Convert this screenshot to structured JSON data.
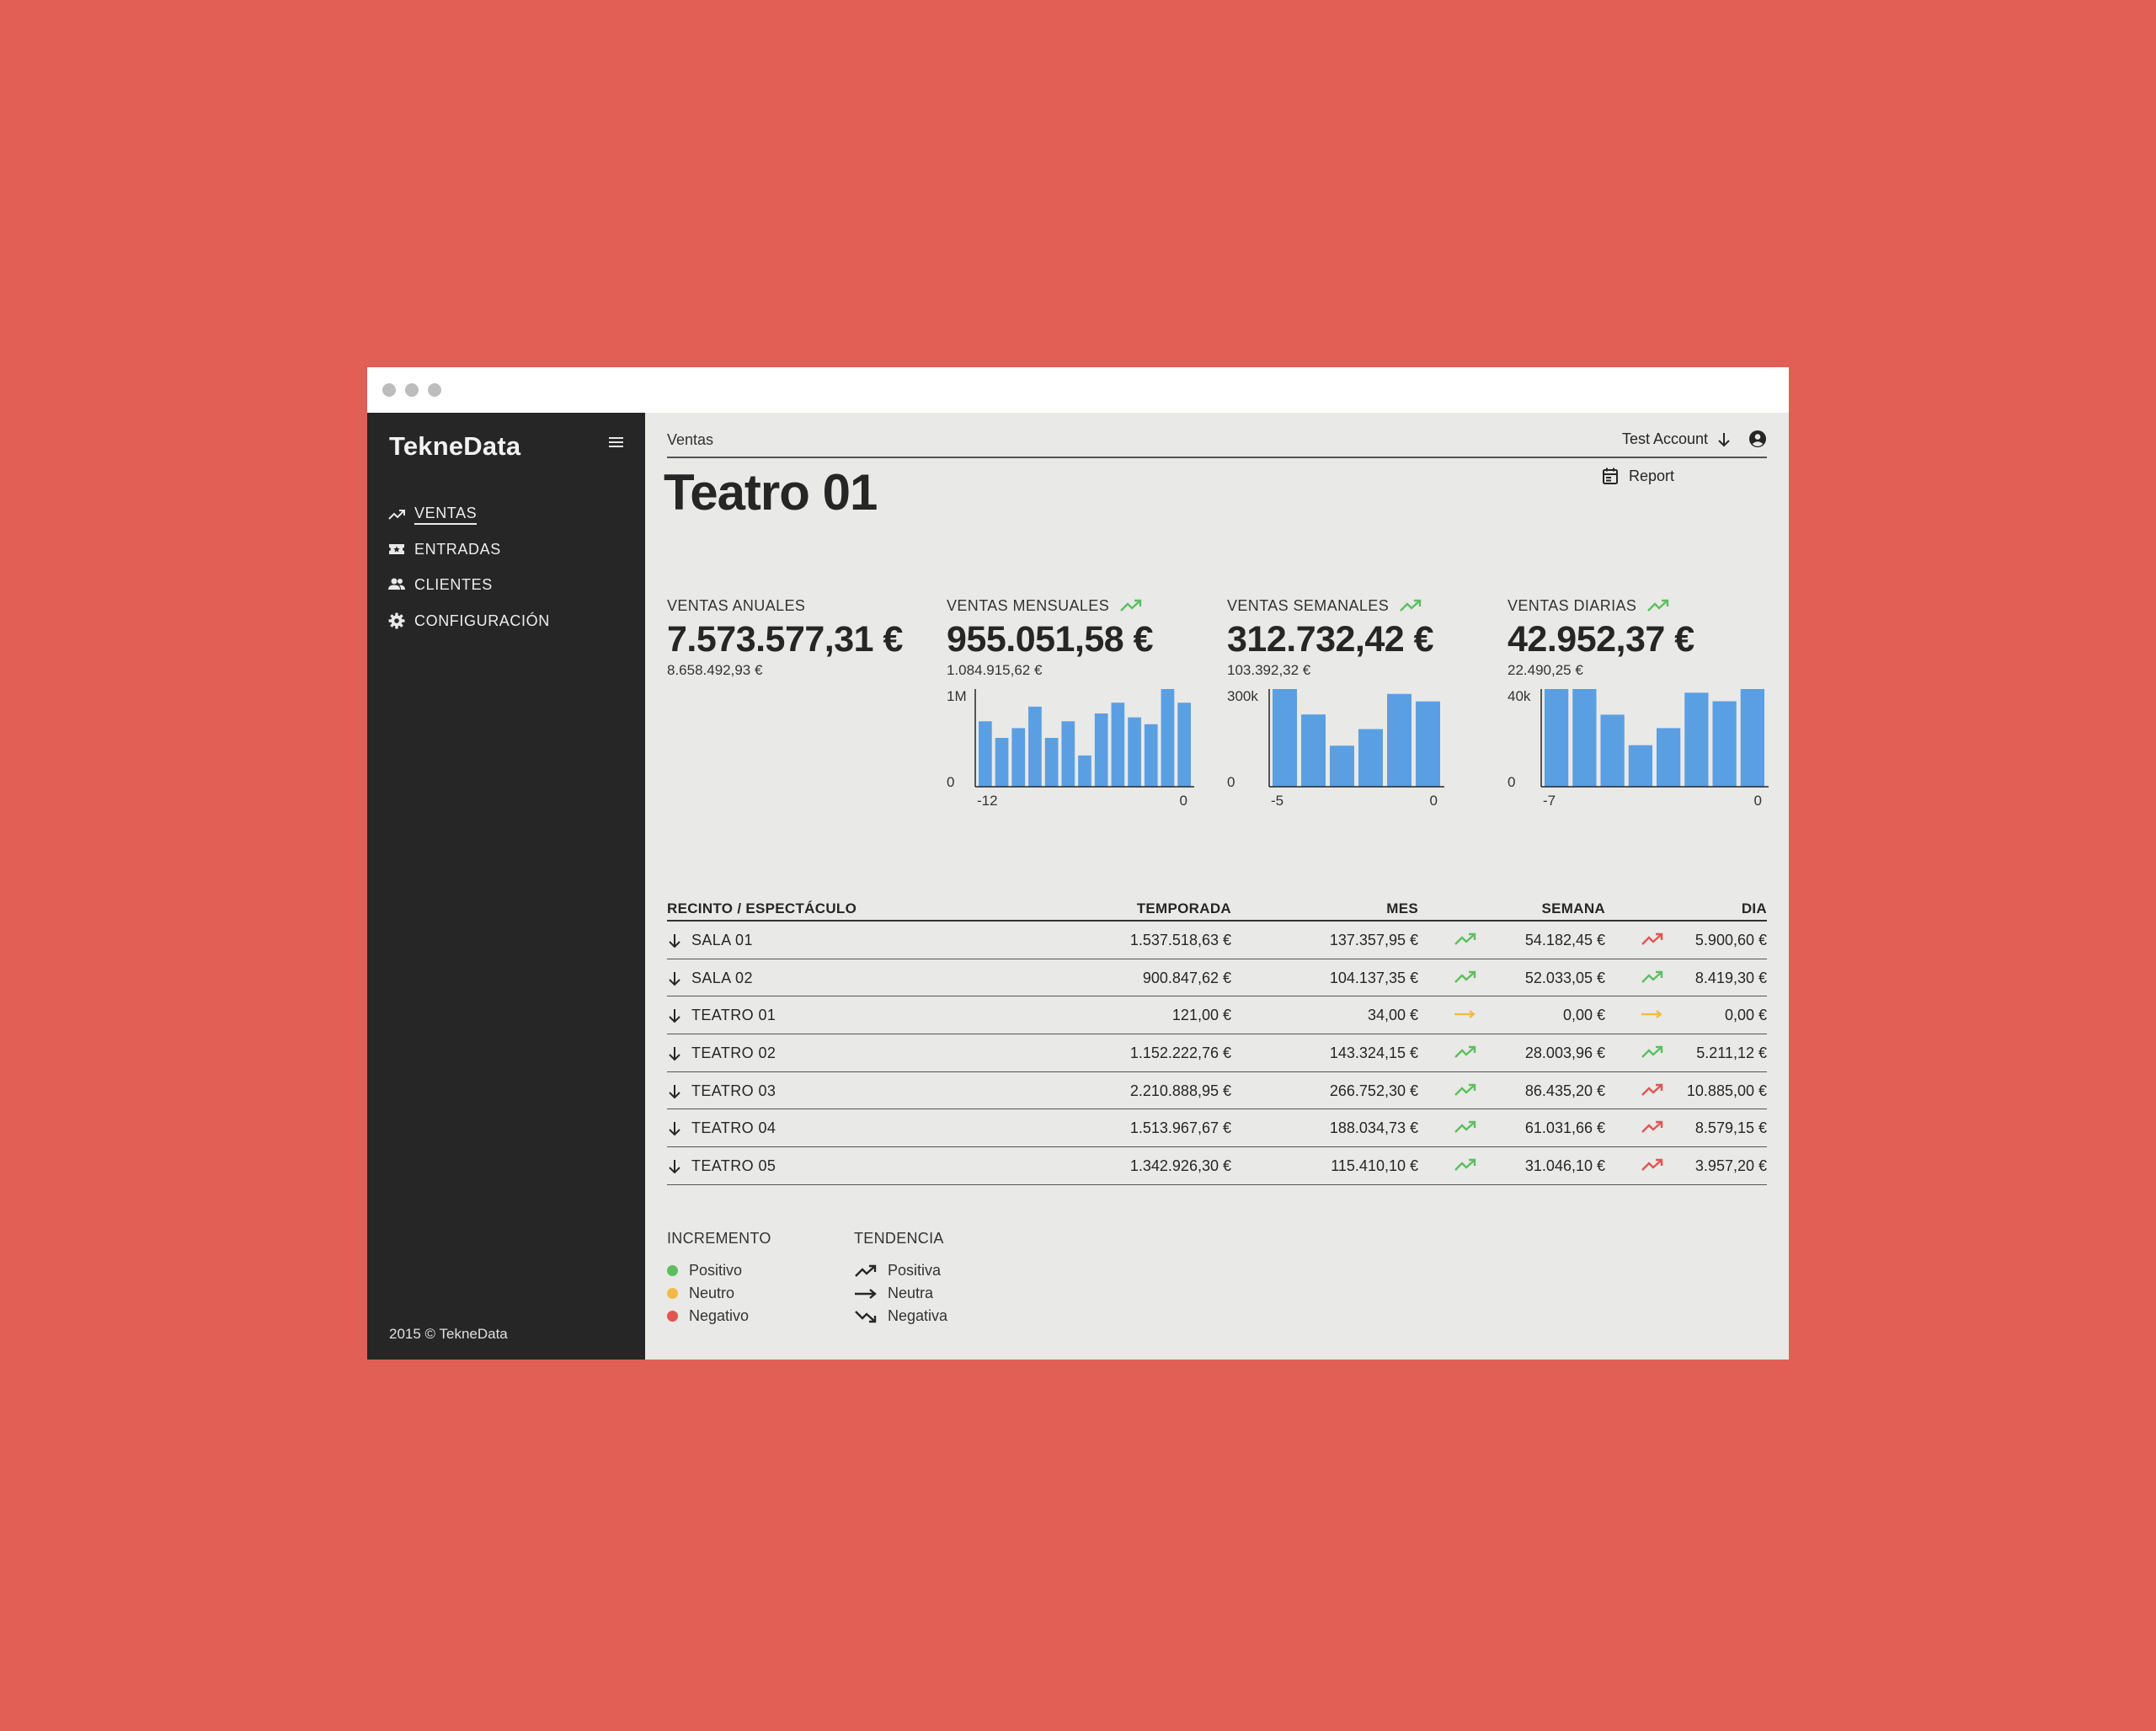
{
  "app": {
    "brand": "TekneData",
    "footer": "2015 © TekneData"
  },
  "colors": {
    "background": "#e25f55",
    "sidebar": "#262626",
    "content": "#e9e9e7",
    "bar": "#5b9fe3",
    "positive": "#5cbf5f",
    "neutral": "#f4b942",
    "negative": "#e25552"
  },
  "sidebar": {
    "items": [
      {
        "label": "VENTAS",
        "icon": "trending-up-icon",
        "active": true
      },
      {
        "label": "ENTRADAS",
        "icon": "ticket-icon",
        "active": false
      },
      {
        "label": "CLIENTES",
        "icon": "people-icon",
        "active": false
      },
      {
        "label": "CONFIGURACIÓN",
        "icon": "gear-icon",
        "active": false
      }
    ]
  },
  "header": {
    "breadcrumb": "Ventas",
    "account": "Test Account",
    "report": "Report",
    "title": "Teatro 01"
  },
  "kpis": [
    {
      "label": "VENTAS ANUALES",
      "value": "7.573.577,31 €",
      "sub": "8.658.492,93 €",
      "trend": null
    },
    {
      "label": "VENTAS MENSUALES",
      "value": "955.051,58 €",
      "sub": "1.084.915,62 €",
      "trend": "positive"
    },
    {
      "label": "VENTAS SEMANALES",
      "value": "312.732,42 €",
      "sub": "103.392,32 €",
      "trend": "positive"
    },
    {
      "label": "VENTAS DIARIAS",
      "value": "42.952,37 €",
      "sub": "22.490,25 €",
      "trend": "positive"
    }
  ],
  "chart_data": [
    {
      "type": "bar",
      "x": [
        -12,
        -11,
        -10,
        -9,
        -8,
        -7,
        -6,
        -5,
        -4,
        -3,
        -2,
        -1,
        0
      ],
      "values": [
        670000,
        500000,
        600000,
        820000,
        500000,
        670000,
        320000,
        750000,
        860000,
        710000,
        640000,
        1000000,
        860000
      ],
      "ylim": [
        0,
        1000000
      ],
      "ytick_labels": [
        "0",
        "1M"
      ],
      "xtick_labels": [
        "-12",
        "0"
      ]
    },
    {
      "type": "bar",
      "x": [
        -5,
        -4,
        -3,
        -2,
        -1,
        0
      ],
      "values": [
        300000,
        222000,
        126000,
        177000,
        285000,
        262000
      ],
      "ylim": [
        0,
        300000
      ],
      "ytick_labels": [
        "0",
        "300k"
      ],
      "xtick_labels": [
        "-5",
        "0"
      ]
    },
    {
      "type": "bar",
      "x": [
        -7,
        -6,
        -5,
        -4,
        -3,
        -2,
        -1,
        0
      ],
      "values": [
        40000,
        40000,
        29500,
        17000,
        24000,
        38500,
        35000,
        40000
      ],
      "ylim": [
        0,
        40000
      ],
      "ytick_labels": [
        "0",
        "40k"
      ],
      "xtick_labels": [
        "-7",
        "0"
      ]
    }
  ],
  "table": {
    "headers": [
      "RECINTO / ESPECTÁCULO",
      "TEMPORADA",
      "MES",
      "SEMANA",
      "DIA"
    ],
    "rows": [
      {
        "name": "SALA 01",
        "temporada": "1.537.518,63 €",
        "mes": "137.357,95 €",
        "semana": "54.182,45 €",
        "semana_trend": "positive",
        "dia": "5.900,60 €",
        "dia_trend": "negative"
      },
      {
        "name": "SALA 02",
        "temporada": "900.847,62 €",
        "mes": "104.137,35 €",
        "semana": "52.033,05 €",
        "semana_trend": "positive",
        "dia": "8.419,30 €",
        "dia_trend": "positive"
      },
      {
        "name": "TEATRO 01",
        "temporada": "121,00 €",
        "mes": "34,00 €",
        "semana": "0,00 €",
        "semana_trend": "neutral",
        "dia": "0,00 €",
        "dia_trend": "neutral"
      },
      {
        "name": "TEATRO 02",
        "temporada": "1.152.222,76 €",
        "mes": "143.324,15 €",
        "semana": "28.003,96 €",
        "semana_trend": "positive",
        "dia": "5.211,12 €",
        "dia_trend": "positive"
      },
      {
        "name": "TEATRO 03",
        "temporada": "2.210.888,95 €",
        "mes": "266.752,30 €",
        "semana": "86.435,20 €",
        "semana_trend": "positive",
        "dia": "10.885,00 €",
        "dia_trend": "negative"
      },
      {
        "name": "TEATRO 04",
        "temporada": "1.513.967,67 €",
        "mes": "188.034,73 €",
        "semana": "61.031,66 €",
        "semana_trend": "positive",
        "dia": "8.579,15 €",
        "dia_trend": "negative"
      },
      {
        "name": "TEATRO 05",
        "temporada": "1.342.926,30 €",
        "mes": "115.410,10 €",
        "semana": "31.046,10 €",
        "semana_trend": "positive",
        "dia": "3.957,20 €",
        "dia_trend": "negative"
      }
    ]
  },
  "legend": {
    "increment": {
      "title": "INCREMENTO",
      "items": [
        {
          "label": "Positivo",
          "color": "#5cbf5f"
        },
        {
          "label": "Neutro",
          "color": "#f4b942"
        },
        {
          "label": "Negativo",
          "color": "#e25552"
        }
      ]
    },
    "trend": {
      "title": "TENDENCIA",
      "items": [
        {
          "label": "Positiva",
          "icon": "trend-up-icon"
        },
        {
          "label": "Neutra",
          "icon": "trend-flat-icon"
        },
        {
          "label": "Negativa",
          "icon": "trend-down-icon"
        }
      ]
    }
  }
}
